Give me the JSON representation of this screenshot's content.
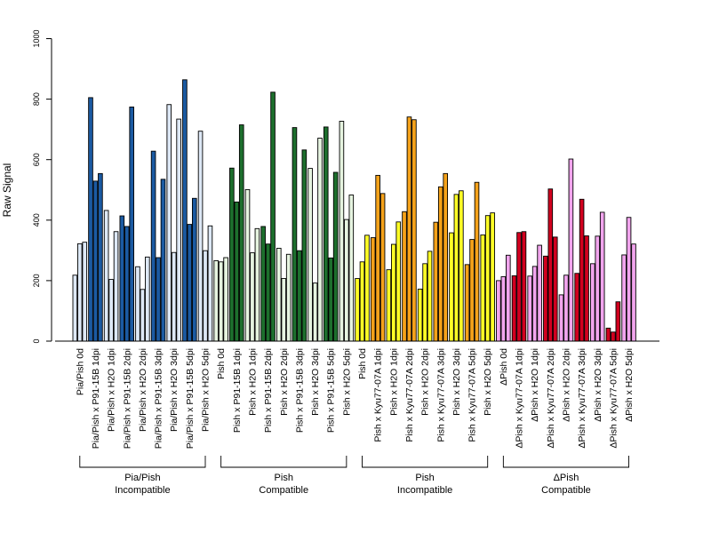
{
  "chart_data": {
    "type": "bar",
    "title": "",
    "xlabel": "",
    "ylabel": "Raw Signal",
    "ylim": [
      0,
      1000
    ],
    "yticks": [
      "0",
      "200",
      "400",
      "600",
      "800",
      "1000"
    ],
    "yticks_values": [
      0,
      200,
      400,
      600,
      800,
      1000
    ],
    "grid": false,
    "legend": "none",
    "categories": [
      "Pia/Pish 0d",
      "Pia/Pish x P91-15B 1dpi",
      "Pia/Pish x H2O 1dpi",
      "Pia/Pish x P91-15B 2dpi",
      "Pia/Pish x H2O 2dpi",
      "Pia/Pish x P91-15B 3dpi",
      "Pia/Pish x H2O 3dpi",
      "Pia/Pish x P91-15B 5dpi",
      "Pia/Pish x H2O 5dpi",
      "Pish 0d",
      "Pish x P91-15B 1dpi",
      "Pish x H2O 1dpi",
      "Pish x P91-15B 2dpi",
      "Pish x H2O 2dpi",
      "Pish x P91-15B 3dpi",
      "Pish x H2O 3dpi",
      "Pish x P91-15B 5dpi",
      "Pish x H2O 5dpi",
      "Pish 0d",
      "Pish x Kyu77-07A 1dpi",
      "Pish x H2O 1dpi",
      "Pish x Kyu77-07A 2dpi",
      "Pish x H2O 2dpi",
      "Pish x Kyu77-07A 3dpi",
      "Pish x H2O 3dpi",
      "Pish x Kyu77-07A 5dpi",
      "Pish x H2O 5dpi",
      "ΔPish 0d",
      "ΔPish x Kyu77-07A 1dpi",
      "ΔPish x H2O 1dpi",
      "ΔPish x Kyu77-07A 2dpi",
      "ΔPish x H2O 2dpi",
      "ΔPish x Kyu77-07A 3dpi",
      "ΔPish x H2O 3dpi",
      "ΔPish x Kyu77-07A 5dpi",
      "ΔPish x H2O 5dpi"
    ],
    "replicates": [
      [
        218,
        322,
        327
      ],
      [
        805,
        529,
        554
      ],
      [
        432,
        204,
        362
      ],
      [
        414,
        379,
        774
      ],
      [
        246,
        171,
        278
      ],
      [
        628,
        276,
        535
      ],
      [
        782,
        293,
        734
      ],
      [
        864,
        386,
        472
      ],
      [
        694,
        299,
        381
      ],
      [
        266,
        262,
        276
      ],
      [
        572,
        460,
        715
      ],
      [
        501,
        292,
        372
      ],
      [
        379,
        321,
        823
      ],
      [
        307,
        207,
        287
      ],
      [
        706,
        299,
        632
      ],
      [
        571,
        192,
        671
      ],
      [
        708,
        275,
        558
      ],
      [
        727,
        402,
        483
      ],
      [
        207,
        262,
        350
      ],
      [
        342,
        548,
        488
      ],
      [
        236,
        320,
        394
      ],
      [
        428,
        741,
        732
      ],
      [
        172,
        256,
        297
      ],
      [
        393,
        510,
        554
      ],
      [
        358,
        485,
        497
      ],
      [
        253,
        336,
        525
      ],
      [
        351,
        415,
        424
      ],
      [
        200,
        213,
        284
      ],
      [
        216,
        359,
        362
      ],
      [
        215,
        247,
        317
      ],
      [
        281,
        503,
        344
      ],
      [
        153,
        218,
        602
      ],
      [
        224,
        469,
        348
      ],
      [
        256,
        347,
        426
      ],
      [
        43,
        30,
        130
      ],
      [
        285,
        409,
        321
      ]
    ],
    "bar_colors": [
      "#dde8f6",
      "#1b5aa2",
      "#dde8f6",
      "#1b5aa2",
      "#dde8f6",
      "#1b5aa2",
      "#dde8f6",
      "#1b5aa2",
      "#dde8f6",
      "#e6f4e0",
      "#1d6f2d",
      "#e6f4e0",
      "#1d6f2d",
      "#e6f4e0",
      "#1d6f2d",
      "#e6f4e0",
      "#1d6f2d",
      "#e6f4e0",
      "#ffff26",
      "#f5a21a",
      "#ffff26",
      "#f5a21a",
      "#ffff26",
      "#f5a21a",
      "#ffff26",
      "#f5a21a",
      "#ffff26",
      "#f2a5ee",
      "#d1001f",
      "#f2a5ee",
      "#d1001f",
      "#f2a5ee",
      "#d1001f",
      "#f2a5ee",
      "#d1001f",
      "#f2a5ee"
    ],
    "groups": [
      {
        "line1": "Pia/Pish",
        "line2": "Incompatible",
        "first": 0,
        "last": 8
      },
      {
        "line1": "Pish",
        "line2": "Compatible",
        "first": 9,
        "last": 17
      },
      {
        "line1": "Pish",
        "line2": "Incompatible",
        "first": 18,
        "last": 26
      },
      {
        "line1": "ΔPish",
        "line2": "Compatible",
        "first": 27,
        "last": 35
      }
    ]
  }
}
